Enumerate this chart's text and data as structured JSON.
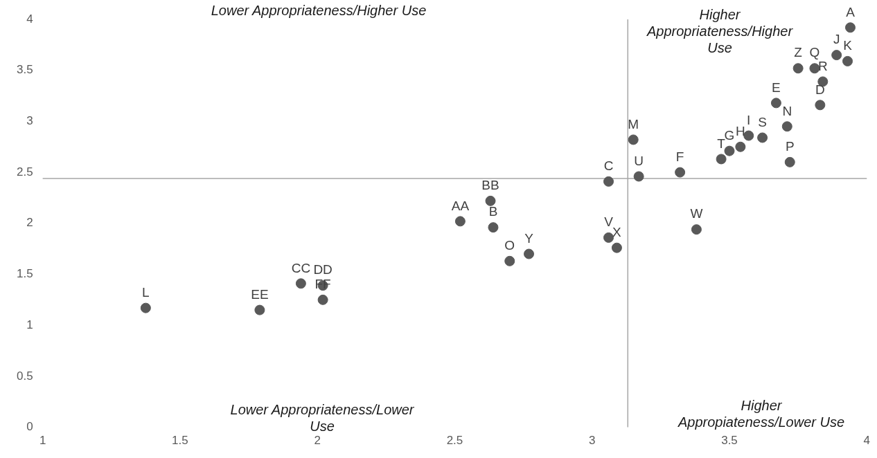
{
  "chart_data": {
    "type": "scatter",
    "color": "#595959",
    "marker": "circle",
    "x": [
      3.94,
      3.89,
      3.93,
      3.75,
      3.81,
      3.84,
      3.83,
      3.67,
      3.71,
      3.62,
      3.57,
      3.54,
      3.5,
      3.47,
      3.72,
      3.32,
      3.17,
      3.15,
      3.06,
      3.38,
      2.63,
      2.64,
      2.52,
      2.7,
      2.77,
      3.06,
      3.09,
      1.375,
      1.79,
      1.94,
      2.02,
      2.02
    ],
    "values": [
      3.92,
      3.65,
      3.59,
      3.52,
      3.52,
      3.39,
      3.16,
      3.18,
      2.95,
      2.84,
      2.86,
      2.75,
      2.71,
      2.63,
      2.6,
      2.5,
      2.46,
      2.82,
      2.41,
      1.94,
      2.22,
      1.96,
      2.02,
      1.63,
      1.7,
      1.86,
      1.76,
      1.17,
      1.15,
      1.41,
      1.39,
      1.25
    ],
    "xlim": [
      1,
      4
    ],
    "xticks": [
      1,
      1.5,
      2,
      2.5,
      3,
      3.5,
      4
    ],
    "ylim": [
      0,
      4
    ],
    "yticks": [
      0,
      0.5,
      1,
      1.5,
      2,
      2.5,
      3,
      3.5,
      4
    ],
    "grid": false,
    "legend": false,
    "ref_lines": [
      {
        "axis": "x",
        "value": 3.13,
        "color": "#a6a6a6"
      },
      {
        "axis": "y",
        "value": 2.44,
        "color": "#a6a6a6"
      }
    ],
    "annotations": [
      "Lower Appropriateness/Higher Use",
      "Higher Appropriateness/Higher Use",
      "Lower Appropriateness/Lower Use",
      "Higher Appropiateness/Lower Use",
      {
        "text": "A",
        "x": 3.94,
        "y": 3.92
      },
      {
        "text": "J",
        "x": 3.89,
        "y": 3.65
      },
      {
        "text": "K",
        "x": 3.93,
        "y": 3.59
      },
      {
        "text": "Z",
        "x": 3.75,
        "y": 3.52
      },
      {
        "text": "Q",
        "x": 3.81,
        "y": 3.52
      },
      {
        "text": "R",
        "x": 3.84,
        "y": 3.39
      },
      {
        "text": "D",
        "x": 3.83,
        "y": 3.16
      },
      {
        "text": "E",
        "x": 3.67,
        "y": 3.18
      },
      {
        "text": "N",
        "x": 3.71,
        "y": 2.95
      },
      {
        "text": "S",
        "x": 3.62,
        "y": 2.84
      },
      {
        "text": "I",
        "x": 3.57,
        "y": 2.86
      },
      {
        "text": "H",
        "x": 3.54,
        "y": 2.75
      },
      {
        "text": "G",
        "x": 3.5,
        "y": 2.71
      },
      {
        "text": "T",
        "x": 3.47,
        "y": 2.63
      },
      {
        "text": "P",
        "x": 3.72,
        "y": 2.6
      },
      {
        "text": "F",
        "x": 3.32,
        "y": 2.5
      },
      {
        "text": "U",
        "x": 3.17,
        "y": 2.46
      },
      {
        "text": "M",
        "x": 3.15,
        "y": 2.82
      },
      {
        "text": "C",
        "x": 3.06,
        "y": 2.41
      },
      {
        "text": "W",
        "x": 3.38,
        "y": 1.94
      },
      {
        "text": "BB",
        "x": 2.63,
        "y": 2.22
      },
      {
        "text": "B",
        "x": 2.64,
        "y": 1.96
      },
      {
        "text": "AA",
        "x": 2.52,
        "y": 2.02
      },
      {
        "text": "O",
        "x": 2.7,
        "y": 1.63
      },
      {
        "text": "Y",
        "x": 2.77,
        "y": 1.7
      },
      {
        "text": "V",
        "x": 3.06,
        "y": 1.86
      },
      {
        "text": "X",
        "x": 3.09,
        "y": 1.76
      },
      {
        "text": "L",
        "x": 1.375,
        "y": 1.17
      },
      {
        "text": "EE",
        "x": 1.79,
        "y": 1.15
      },
      {
        "text": "CC",
        "x": 1.94,
        "y": 1.41
      },
      {
        "text": "DD",
        "x": 2.02,
        "y": 1.39
      },
      {
        "text": "FF",
        "x": 2.02,
        "y": 1.25
      }
    ]
  }
}
